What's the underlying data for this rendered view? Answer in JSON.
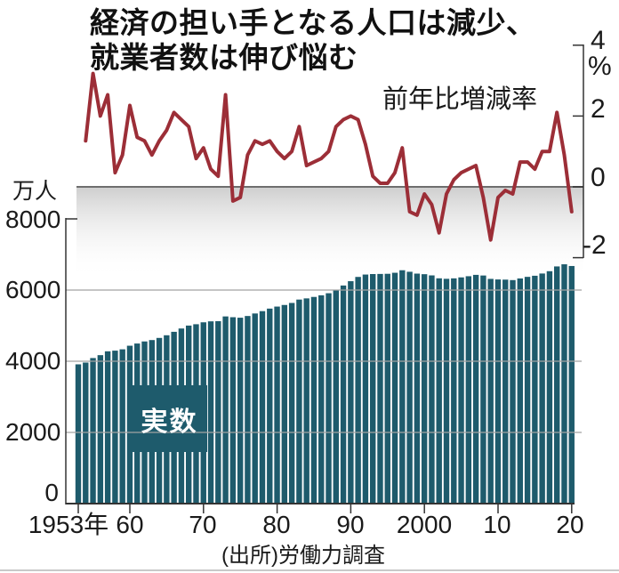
{
  "title": {
    "line1": "経済の担い手となる人口は減少、",
    "line2": "就業者数は伸び悩む"
  },
  "labels": {
    "left_unit": "万人",
    "right_unit": "%",
    "line_series": "前年比増減率",
    "bar_series": "実数",
    "source": "(出所)労働力調査"
  },
  "colors": {
    "bar": "#1e5b6c",
    "line": "#9c2e37",
    "band": "#cfcfcf",
    "zero_line": "#6e6e6e",
    "grid": "#a2a2a2",
    "axis": "#333333"
  },
  "chart_data": {
    "type": [
      "bar",
      "line"
    ],
    "title": "経済の担い手となる人口は減少、就業者数は伸び悩む",
    "source": "(出所)労働力調査",
    "x_axis": {
      "tick_labels": [
        "1953年",
        "60",
        "70",
        "80",
        "90",
        "2000",
        "10",
        "20"
      ],
      "tick_years": [
        1953,
        1960,
        1970,
        1980,
        1990,
        2000,
        2010,
        2020
      ],
      "range_years": [
        1953,
        2020
      ]
    },
    "left_axis": {
      "unit": "万人",
      "tick_labels": [
        "8000",
        "6000",
        "4000",
        "2000",
        "0"
      ],
      "tick_values": [
        8000,
        6000,
        4000,
        2000,
        0
      ],
      "range": [
        0,
        8000
      ],
      "applies_to": "実数 (bars)"
    },
    "right_axis": {
      "unit": "%",
      "tick_labels": [
        "4",
        "2",
        "0",
        "-2"
      ],
      "tick_values": [
        4,
        2,
        0,
        -2
      ],
      "range": [
        -2,
        4
      ],
      "applies_to": "前年比増減率 (line)"
    },
    "series": [
      {
        "name": "実数",
        "type": "bar",
        "unit": "万人",
        "start_year": 1953,
        "values": [
          3913,
          3963,
          4090,
          4171,
          4279,
          4298,
          4335,
          4436,
          4498,
          4556,
          4595,
          4655,
          4730,
          4827,
          4920,
          5002,
          5040,
          5094,
          5121,
          5126,
          5259,
          5237,
          5223,
          5271,
          5342,
          5408,
          5479,
          5536,
          5581,
          5638,
          5733,
          5766,
          5807,
          5853,
          5911,
          6011,
          6128,
          6249,
          6369,
          6436,
          6450,
          6453,
          6457,
          6486,
          6557,
          6514,
          6462,
          6446,
          6412,
          6330,
          6316,
          6329,
          6356,
          6389,
          6427,
          6409,
          6314,
          6298,
          6293,
          6280,
          6326,
          6371,
          6402,
          6465,
          6530,
          6664,
          6724,
          6676
        ]
      },
      {
        "name": "前年比増減率",
        "type": "line",
        "unit": "%",
        "start_year": 1954,
        "values": [
          1.3,
          3.2,
          2.0,
          2.6,
          0.4,
          0.9,
          2.3,
          1.4,
          1.3,
          0.9,
          1.3,
          1.6,
          2.1,
          1.9,
          1.7,
          0.8,
          1.1,
          0.5,
          0.3,
          2.6,
          -0.4,
          -0.3,
          0.9,
          1.3,
          1.2,
          1.3,
          1.0,
          0.8,
          1.0,
          1.7,
          0.6,
          0.7,
          0.8,
          1.0,
          1.7,
          1.9,
          2.0,
          1.9,
          1.2,
          0.3,
          0.1,
          0.1,
          0.4,
          1.1,
          -0.7,
          -0.8,
          -0.2,
          -0.5,
          -1.3,
          -0.2,
          0.2,
          0.4,
          0.5,
          0.6,
          -0.3,
          -1.5,
          -0.3,
          -0.1,
          -0.2,
          0.7,
          0.7,
          0.5,
          1.0,
          1.0,
          2.1,
          0.9,
          -0.7
        ]
      }
    ],
    "grid": "horizontal lines at 6000/4000/2000",
    "legend_position": "inline annotations"
  }
}
